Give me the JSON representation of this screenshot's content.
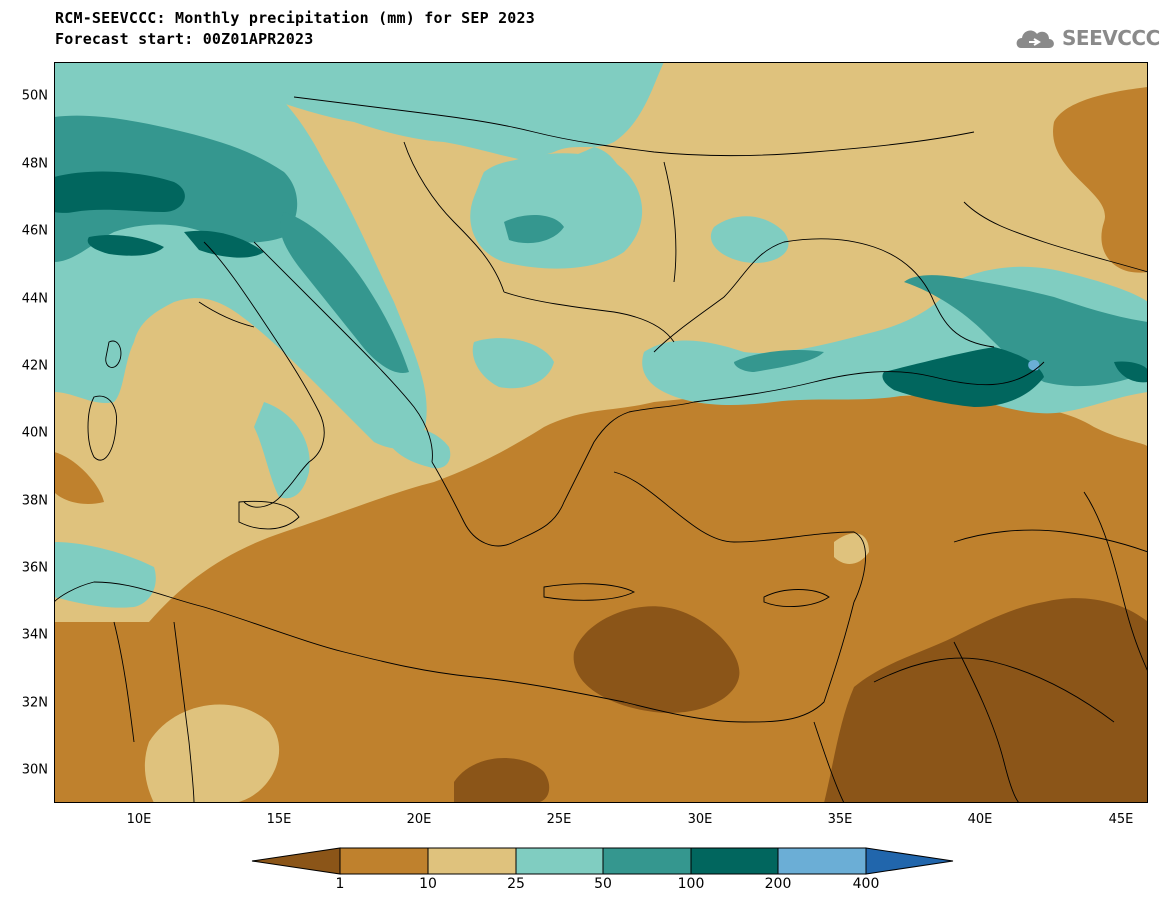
{
  "header": {
    "title_line1": "RCM-SEEVCCC: Monthly precipitation (mm) for SEP 2023",
    "title_line2": "Forecast start: 00Z01APR2023",
    "logo_text": "SEEVCCC",
    "logo_icon": "cloud-logo-icon"
  },
  "map": {
    "region": "South-eastern Europe and Eastern Mediterranean",
    "latitude_labels": [
      "50N",
      "48N",
      "46N",
      "44N",
      "42N",
      "40N",
      "38N",
      "36N",
      "34N",
      "32N",
      "30N"
    ],
    "longitude_labels": [
      "10E",
      "15E",
      "20E",
      "25E",
      "30E",
      "35E",
      "40E",
      "45E"
    ]
  },
  "legend": {
    "levels": [
      "1",
      "10",
      "25",
      "50",
      "100",
      "200",
      "400"
    ],
    "colors": {
      "below_1": "#8B5518",
      "1_10": "#BF812D",
      "10_25": "#DFC27D",
      "25_50": "#80CDC1",
      "50_100": "#35978F",
      "100_200": "#01665E",
      "200_400": "#6BAED6",
      "above_400": "#2166AC"
    }
  }
}
